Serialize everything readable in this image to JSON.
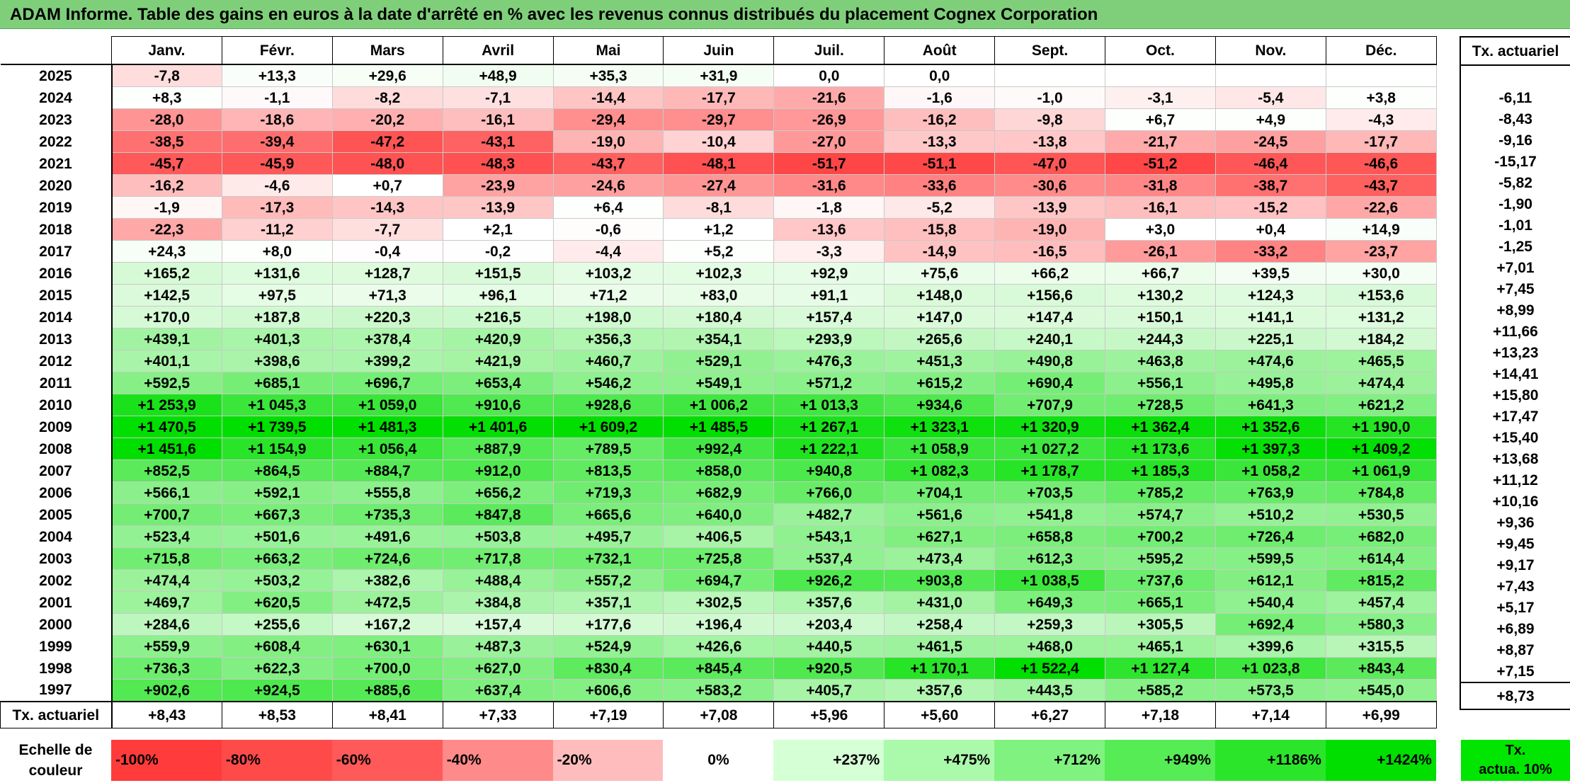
{
  "title": "ADAM Informe. Table des gains en euros à la date d'arrêté en % avec les revenus connus distribués du placement Cognex Corporation",
  "months": [
    "Janv.",
    "Févr.",
    "Mars",
    "Avril",
    "Mai",
    "Juin",
    "Juil.",
    "Août",
    "Sept.",
    "Oct.",
    "Nov.",
    "Déc."
  ],
  "tx_header": "Tx. actuariel",
  "rows": [
    {
      "year": "2025",
      "values": [
        "-7,8",
        "+13,3",
        "+29,6",
        "+48,9",
        "+35,3",
        "+31,9",
        "0,0",
        "0,0",
        "",
        "",
        "",
        ""
      ],
      "tx": ""
    },
    {
      "year": "2024",
      "values": [
        "+8,3",
        "-1,1",
        "-8,2",
        "-7,1",
        "-14,4",
        "-17,7",
        "-21,6",
        "-1,6",
        "-1,0",
        "-3,1",
        "-5,4",
        "+3,8"
      ],
      "tx": "-6,11"
    },
    {
      "year": "2023",
      "values": [
        "-28,0",
        "-18,6",
        "-20,2",
        "-16,1",
        "-29,4",
        "-29,7",
        "-26,9",
        "-16,2",
        "-9,8",
        "+6,7",
        "+4,9",
        "-4,3"
      ],
      "tx": "-8,43"
    },
    {
      "year": "2022",
      "values": [
        "-38,5",
        "-39,4",
        "-47,2",
        "-43,1",
        "-19,0",
        "-10,4",
        "-27,0",
        "-13,3",
        "-13,8",
        "-21,7",
        "-24,5",
        "-17,7"
      ],
      "tx": "-9,16"
    },
    {
      "year": "2021",
      "values": [
        "-45,7",
        "-45,9",
        "-48,0",
        "-48,3",
        "-43,7",
        "-48,1",
        "-51,7",
        "-51,1",
        "-47,0",
        "-51,2",
        "-46,4",
        "-46,6"
      ],
      "tx": "-15,17"
    },
    {
      "year": "2020",
      "values": [
        "-16,2",
        "-4,6",
        "+0,7",
        "-23,9",
        "-24,6",
        "-27,4",
        "-31,6",
        "-33,6",
        "-30,6",
        "-31,8",
        "-38,7",
        "-43,7"
      ],
      "tx": "-5,82"
    },
    {
      "year": "2019",
      "values": [
        "-1,9",
        "-17,3",
        "-14,3",
        "-13,9",
        "+6,4",
        "-8,1",
        "-1,8",
        "-5,2",
        "-13,9",
        "-16,1",
        "-15,2",
        "-22,6"
      ],
      "tx": "-1,90"
    },
    {
      "year": "2018",
      "values": [
        "-22,3",
        "-11,2",
        "-7,7",
        "+2,1",
        "-0,6",
        "+1,2",
        "-13,6",
        "-15,8",
        "-19,0",
        "+3,0",
        "+0,4",
        "+14,9"
      ],
      "tx": "-1,01"
    },
    {
      "year": "2017",
      "values": [
        "+24,3",
        "+8,0",
        "-0,4",
        "-0,2",
        "-4,4",
        "+5,2",
        "-3,3",
        "-14,9",
        "-16,5",
        "-26,1",
        "-33,2",
        "-23,7"
      ],
      "tx": "-1,25"
    },
    {
      "year": "2016",
      "values": [
        "+165,2",
        "+131,6",
        "+128,7",
        "+151,5",
        "+103,2",
        "+102,3",
        "+92,9",
        "+75,6",
        "+66,2",
        "+66,7",
        "+39,5",
        "+30,0"
      ],
      "tx": "+7,01"
    },
    {
      "year": "2015",
      "values": [
        "+142,5",
        "+97,5",
        "+71,3",
        "+96,1",
        "+71,2",
        "+83,0",
        "+91,1",
        "+148,0",
        "+156,6",
        "+130,2",
        "+124,3",
        "+153,6"
      ],
      "tx": "+7,45"
    },
    {
      "year": "2014",
      "values": [
        "+170,0",
        "+187,8",
        "+220,3",
        "+216,5",
        "+198,0",
        "+180,4",
        "+157,4",
        "+147,0",
        "+147,4",
        "+150,1",
        "+141,1",
        "+131,2"
      ],
      "tx": "+8,99"
    },
    {
      "year": "2013",
      "values": [
        "+439,1",
        "+401,3",
        "+378,4",
        "+420,9",
        "+356,3",
        "+354,1",
        "+293,9",
        "+265,6",
        "+240,1",
        "+244,3",
        "+225,1",
        "+184,2"
      ],
      "tx": "+11,66"
    },
    {
      "year": "2012",
      "values": [
        "+401,1",
        "+398,6",
        "+399,2",
        "+421,9",
        "+460,7",
        "+529,1",
        "+476,3",
        "+451,3",
        "+490,8",
        "+463,8",
        "+474,6",
        "+465,5"
      ],
      "tx": "+13,23"
    },
    {
      "year": "2011",
      "values": [
        "+592,5",
        "+685,1",
        "+696,7",
        "+653,4",
        "+546,2",
        "+549,1",
        "+571,2",
        "+615,2",
        "+690,4",
        "+556,1",
        "+495,8",
        "+474,4"
      ],
      "tx": "+14,41"
    },
    {
      "year": "2010",
      "values": [
        "+1 253,9",
        "+1 045,3",
        "+1 059,0",
        "+910,6",
        "+928,6",
        "+1 006,2",
        "+1 013,3",
        "+934,6",
        "+707,9",
        "+728,5",
        "+641,3",
        "+621,2"
      ],
      "tx": "+15,80"
    },
    {
      "year": "2009",
      "values": [
        "+1 470,5",
        "+1 739,5",
        "+1 481,3",
        "+1 401,6",
        "+1 609,2",
        "+1 485,5",
        "+1 267,1",
        "+1 323,1",
        "+1 320,9",
        "+1 362,4",
        "+1 352,6",
        "+1 190,0"
      ],
      "tx": "+17,47"
    },
    {
      "year": "2008",
      "values": [
        "+1 451,6",
        "+1 154,9",
        "+1 056,4",
        "+887,9",
        "+789,5",
        "+992,4",
        "+1 222,1",
        "+1 058,9",
        "+1 027,2",
        "+1 173,6",
        "+1 397,3",
        "+1 409,2"
      ],
      "tx": "+15,40"
    },
    {
      "year": "2007",
      "values": [
        "+852,5",
        "+864,5",
        "+884,7",
        "+912,0",
        "+813,5",
        "+858,0",
        "+940,8",
        "+1 082,3",
        "+1 178,7",
        "+1 185,3",
        "+1 058,2",
        "+1 061,9"
      ],
      "tx": "+13,68"
    },
    {
      "year": "2006",
      "values": [
        "+566,1",
        "+592,1",
        "+555,8",
        "+656,2",
        "+719,3",
        "+682,9",
        "+766,0",
        "+704,1",
        "+703,5",
        "+785,2",
        "+763,9",
        "+784,8"
      ],
      "tx": "+11,12"
    },
    {
      "year": "2005",
      "values": [
        "+700,7",
        "+667,3",
        "+735,3",
        "+847,8",
        "+665,6",
        "+640,0",
        "+482,7",
        "+561,6",
        "+541,8",
        "+574,7",
        "+510,2",
        "+530,5"
      ],
      "tx": "+10,16"
    },
    {
      "year": "2004",
      "values": [
        "+523,4",
        "+501,6",
        "+491,6",
        "+503,8",
        "+495,7",
        "+406,5",
        "+543,1",
        "+627,1",
        "+658,8",
        "+700,2",
        "+726,4",
        "+682,0"
      ],
      "tx": "+9,36"
    },
    {
      "year": "2003",
      "values": [
        "+715,8",
        "+663,2",
        "+724,6",
        "+717,8",
        "+732,1",
        "+725,8",
        "+537,4",
        "+473,4",
        "+612,3",
        "+595,2",
        "+599,5",
        "+614,4"
      ],
      "tx": "+9,45"
    },
    {
      "year": "2002",
      "values": [
        "+474,4",
        "+503,2",
        "+382,6",
        "+488,4",
        "+557,2",
        "+694,7",
        "+926,2",
        "+903,8",
        "+1 038,5",
        "+737,6",
        "+612,1",
        "+815,2"
      ],
      "tx": "+9,17"
    },
    {
      "year": "2001",
      "values": [
        "+469,7",
        "+620,5",
        "+472,5",
        "+384,8",
        "+357,1",
        "+302,5",
        "+357,6",
        "+431,0",
        "+649,3",
        "+665,1",
        "+540,4",
        "+457,4"
      ],
      "tx": "+7,43"
    },
    {
      "year": "2000",
      "values": [
        "+284,6",
        "+255,6",
        "+167,2",
        "+157,4",
        "+177,6",
        "+196,4",
        "+203,4",
        "+258,4",
        "+259,3",
        "+305,5",
        "+692,4",
        "+580,3"
      ],
      "tx": "+5,17"
    },
    {
      "year": "1999",
      "values": [
        "+559,9",
        "+608,4",
        "+630,1",
        "+487,3",
        "+524,9",
        "+426,6",
        "+440,5",
        "+461,5",
        "+468,0",
        "+465,1",
        "+399,6",
        "+315,5"
      ],
      "tx": "+6,89"
    },
    {
      "year": "1998",
      "values": [
        "+736,3",
        "+622,3",
        "+700,0",
        "+627,0",
        "+830,4",
        "+845,4",
        "+920,5",
        "+1 170,1",
        "+1 522,4",
        "+1 127,4",
        "+1 023,8",
        "+843,4"
      ],
      "tx": "+8,87"
    },
    {
      "year": "1997",
      "values": [
        "+902,6",
        "+924,5",
        "+885,6",
        "+637,4",
        "+606,6",
        "+583,2",
        "+405,7",
        "+357,6",
        "+443,5",
        "+585,2",
        "+573,5",
        "+545,0"
      ],
      "tx": "+7,15"
    }
  ],
  "footer": {
    "label": "Tx. actuariel",
    "values": [
      "+8,43",
      "+8,53",
      "+8,41",
      "+7,33",
      "+7,19",
      "+7,08",
      "+5,96",
      "+5,60",
      "+6,27",
      "+7,18",
      "+7,14",
      "+6,99"
    ],
    "tx": "+8,73"
  },
  "scale": {
    "label_line1": "Echelle de",
    "label_line2": "couleur",
    "items": [
      {
        "label": "-100%",
        "color": "#ff3b3b",
        "align": "left"
      },
      {
        "label": "-80%",
        "color": "#ff4a4a",
        "align": "left"
      },
      {
        "label": "-60%",
        "color": "#ff5959",
        "align": "left"
      },
      {
        "label": "-40%",
        "color": "#ff8a8a",
        "align": "left"
      },
      {
        "label": "-20%",
        "color": "#ffbcbc",
        "align": "left"
      },
      {
        "label": "0%",
        "color": "#ffffff",
        "align": "center"
      },
      {
        "label": "+237%",
        "color": "#d5ffd5",
        "align": "right"
      },
      {
        "label": "+475%",
        "color": "#abf9ab",
        "align": "right"
      },
      {
        "label": "+712%",
        "color": "#80f280",
        "align": "right"
      },
      {
        "label": "+949%",
        "color": "#55ec55",
        "align": "right"
      },
      {
        "label": "+1186%",
        "color": "#2be52b",
        "align": "right"
      },
      {
        "label": "+1424%",
        "color": "#00df00",
        "align": "right"
      }
    ],
    "tx_line1": "Tx.",
    "tx_line2": "actua. 10%",
    "tx_color": "#00e600"
  },
  "colors": {
    "title_bg": "#7fcf7a",
    "neg_max": "#ff3b3b",
    "pos_max": "#00df00"
  }
}
